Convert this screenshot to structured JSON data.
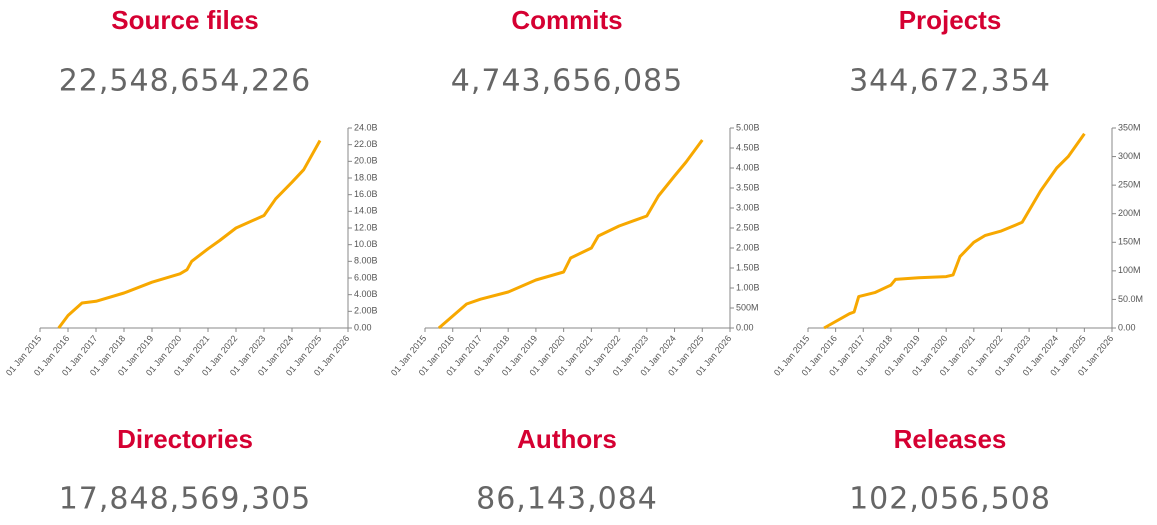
{
  "stats": [
    {
      "title": "Source files",
      "count": "22,548,654,226"
    },
    {
      "title": "Commits",
      "count": "4,743,656,085"
    },
    {
      "title": "Projects",
      "count": "344,672,354"
    },
    {
      "title": "Directories",
      "count": "17,848,569,305"
    },
    {
      "title": "Authors",
      "count": "86,143,084"
    },
    {
      "title": "Releases",
      "count": "102,056,508"
    }
  ],
  "chart_data": [
    {
      "type": "line",
      "x": [
        "2015-09",
        "2016-01",
        "2016-07",
        "2017-01",
        "2018-01",
        "2019-01",
        "2020-01",
        "2020-04",
        "2020-06",
        "2021-01",
        "2021-06",
        "2022-01",
        "2023-01",
        "2023-06",
        "2024-01",
        "2024-06",
        "2025-01"
      ],
      "series": [
        {
          "color": "#f7a800",
          "values": [
            0,
            1500000000,
            3000000000,
            3200000000,
            4200000000,
            5500000000,
            6500000000,
            7000000000,
            8000000000,
            9500000000,
            10500000000,
            12000000000,
            13500000000,
            15500000000,
            17500000000,
            19000000000,
            22500000000
          ]
        }
      ],
      "xlim": [
        "2015-01",
        "2026-01"
      ],
      "xticks": [
        {
          "value": "2015-01",
          "label": "01 Jan 2015"
        },
        {
          "value": "2016-01",
          "label": "01 Jan 2016"
        },
        {
          "value": "2017-01",
          "label": "01 Jan 2017"
        },
        {
          "value": "2018-01",
          "label": "01 Jan 2018"
        },
        {
          "value": "2019-01",
          "label": "01 Jan 2019"
        },
        {
          "value": "2020-01",
          "label": "01 Jan 2020"
        },
        {
          "value": "2021-01",
          "label": "01 Jan 2021"
        },
        {
          "value": "2022-01",
          "label": "01 Jan 2022"
        },
        {
          "value": "2023-01",
          "label": "01 Jan 2023"
        },
        {
          "value": "2024-01",
          "label": "01 Jan 2024"
        },
        {
          "value": "2025-01",
          "label": "01 Jan 2025"
        },
        {
          "value": "2026-01",
          "label": "01 Jan 2026"
        }
      ],
      "ylim": [
        0,
        24000000000
      ],
      "yticks": [
        {
          "value": 0,
          "label": "0.00"
        },
        {
          "value": 2000000000,
          "label": "2.00B"
        },
        {
          "value": 4000000000,
          "label": "4.00B"
        },
        {
          "value": 6000000000,
          "label": "6.00B"
        },
        {
          "value": 8000000000,
          "label": "8.00B"
        },
        {
          "value": 10000000000,
          "label": "10.0B"
        },
        {
          "value": 12000000000,
          "label": "12.0B"
        },
        {
          "value": 14000000000,
          "label": "14.0B"
        },
        {
          "value": 16000000000,
          "label": "16.0B"
        },
        {
          "value": 18000000000,
          "label": "18.0B"
        },
        {
          "value": 20000000000,
          "label": "20.0B"
        },
        {
          "value": 22000000000,
          "label": "22.0B"
        },
        {
          "value": 24000000000,
          "label": "24.0B"
        }
      ]
    },
    {
      "type": "line",
      "x": [
        "2015-07",
        "2016-07",
        "2017-01",
        "2018-01",
        "2019-01",
        "2020-01",
        "2020-04",
        "2021-01",
        "2021-04",
        "2022-01",
        "2023-01",
        "2023-06",
        "2024-01",
        "2024-06",
        "2025-01"
      ],
      "series": [
        {
          "color": "#f7a800",
          "values": [
            0,
            600000000,
            720000000,
            900000000,
            1200000000,
            1400000000,
            1750000000,
            2000000000,
            2300000000,
            2550000000,
            2800000000,
            3300000000,
            3800000000,
            4150000000,
            4700000000
          ]
        }
      ],
      "xlim": [
        "2015-01",
        "2026-01"
      ],
      "xticks": [
        {
          "value": "2015-01",
          "label": "01 Jan 2015"
        },
        {
          "value": "2016-01",
          "label": "01 Jan 2016"
        },
        {
          "value": "2017-01",
          "label": "01 Jan 2017"
        },
        {
          "value": "2018-01",
          "label": "01 Jan 2018"
        },
        {
          "value": "2019-01",
          "label": "01 Jan 2019"
        },
        {
          "value": "2020-01",
          "label": "01 Jan 2020"
        },
        {
          "value": "2021-01",
          "label": "01 Jan 2021"
        },
        {
          "value": "2022-01",
          "label": "01 Jan 2022"
        },
        {
          "value": "2023-01",
          "label": "01 Jan 2023"
        },
        {
          "value": "2024-01",
          "label": "01 Jan 2024"
        },
        {
          "value": "2025-01",
          "label": "01 Jan 2025"
        },
        {
          "value": "2026-01",
          "label": "01 Jan 2026"
        }
      ],
      "ylim": [
        0,
        5000000000
      ],
      "yticks": [
        {
          "value": 0,
          "label": "0.00"
        },
        {
          "value": 500000000,
          "label": "500M"
        },
        {
          "value": 1000000000,
          "label": "1.00B"
        },
        {
          "value": 1500000000,
          "label": "1.50B"
        },
        {
          "value": 2000000000,
          "label": "2.00B"
        },
        {
          "value": 2500000000,
          "label": "2.50B"
        },
        {
          "value": 3000000000,
          "label": "3.00B"
        },
        {
          "value": 3500000000,
          "label": "3.50B"
        },
        {
          "value": 4000000000,
          "label": "4.00B"
        },
        {
          "value": 4500000000,
          "label": "4.50B"
        },
        {
          "value": 5000000000,
          "label": "5.00B"
        }
      ]
    },
    {
      "type": "line",
      "x": [
        "2015-08",
        "2016-07",
        "2016-09",
        "2016-11",
        "2017-06",
        "2018-01",
        "2018-03",
        "2019-01",
        "2020-01",
        "2020-04",
        "2020-07",
        "2021-01",
        "2021-06",
        "2022-01",
        "2022-10",
        "2023-06",
        "2024-01",
        "2024-06",
        "2025-01"
      ],
      "series": [
        {
          "color": "#f7a800",
          "values": [
            0,
            25000000,
            28000000,
            55000000,
            62000000,
            75000000,
            85000000,
            88000000,
            90000000,
            93000000,
            125000000,
            150000000,
            162000000,
            170000000,
            185000000,
            240000000,
            280000000,
            300000000,
            340000000
          ]
        }
      ],
      "xlim": [
        "2015-01",
        "2026-01"
      ],
      "xticks": [
        {
          "value": "2015-01",
          "label": "01 Jan 2015"
        },
        {
          "value": "2016-01",
          "label": "01 Jan 2016"
        },
        {
          "value": "2017-01",
          "label": "01 Jan 2017"
        },
        {
          "value": "2018-01",
          "label": "01 Jan 2018"
        },
        {
          "value": "2019-01",
          "label": "01 Jan 2019"
        },
        {
          "value": "2020-01",
          "label": "01 Jan 2020"
        },
        {
          "value": "2021-01",
          "label": "01 Jan 2021"
        },
        {
          "value": "2022-01",
          "label": "01 Jan 2022"
        },
        {
          "value": "2023-01",
          "label": "01 Jan 2023"
        },
        {
          "value": "2024-01",
          "label": "01 Jan 2024"
        },
        {
          "value": "2025-01",
          "label": "01 Jan 2025"
        },
        {
          "value": "2026-01",
          "label": "01 Jan 2026"
        }
      ],
      "ylim": [
        0,
        350000000
      ],
      "yticks": [
        {
          "value": 0,
          "label": "0.00"
        },
        {
          "value": 50000000,
          "label": "50.0M"
        },
        {
          "value": 100000000,
          "label": "100M"
        },
        {
          "value": 150000000,
          "label": "150M"
        },
        {
          "value": 200000000,
          "label": "200M"
        },
        {
          "value": 250000000,
          "label": "250M"
        },
        {
          "value": 300000000,
          "label": "300M"
        },
        {
          "value": 350000000,
          "label": "350M"
        }
      ]
    }
  ]
}
